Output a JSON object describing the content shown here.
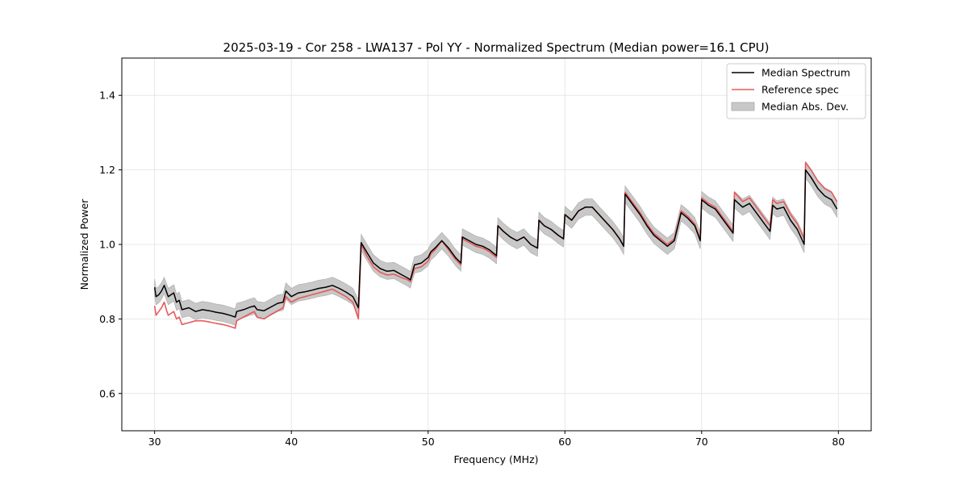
{
  "chart_data": {
    "type": "line",
    "title": "2025-03-19 - Cor 258 - LWA137 - Pol YY - Normalized Spectrum (Median power=16.1 CPU)",
    "xlabel": "Frequency (MHz)",
    "ylabel": "Normalized Power",
    "xlim": [
      27.6,
      82.4
    ],
    "ylim": [
      0.5,
      1.5
    ],
    "xticks": [
      30,
      40,
      50,
      60,
      70,
      80
    ],
    "yticks": [
      0.6,
      0.8,
      1.0,
      1.2,
      1.4
    ],
    "xtick_labels": [
      "30",
      "40",
      "50",
      "60",
      "70",
      "80"
    ],
    "ytick_labels": [
      "0.6",
      "0.8",
      "1.0",
      "1.2",
      "1.4"
    ],
    "grid": true,
    "legend_position": "top-right",
    "legend": [
      {
        "label": "Median Spectrum",
        "kind": "line",
        "color": "#000000"
      },
      {
        "label": "Reference spec",
        "kind": "line",
        "color": "#e8595a"
      },
      {
        "label": "Median Abs. Dev.",
        "kind": "band",
        "color": "#c8c8c8"
      }
    ],
    "series": [
      {
        "name": "Median Spectrum",
        "color": "#000000",
        "x": [
          30.0,
          30.1,
          30.3,
          30.5,
          30.7,
          30.9,
          31.0,
          31.2,
          31.4,
          31.6,
          31.8,
          32.0,
          32.5,
          33.0,
          33.5,
          34.0,
          34.5,
          35.0,
          35.5,
          35.9,
          36.0,
          36.5,
          37.0,
          37.3,
          37.5,
          38.0,
          38.5,
          39.0,
          39.4,
          39.6,
          40.0,
          40.5,
          41.0,
          41.5,
          42.0,
          42.5,
          43.0,
          43.5,
          44.0,
          44.5,
          44.9,
          45.1,
          45.5,
          46.0,
          46.5,
          47.0,
          47.5,
          48.0,
          48.5,
          48.7,
          49.0,
          49.5,
          50.0,
          50.2,
          50.5,
          51.0,
          51.5,
          52.0,
          52.4,
          52.5,
          53.0,
          53.5,
          54.0,
          54.5,
          55.0,
          55.1,
          55.5,
          56.0,
          56.5,
          57.0,
          57.5,
          58.0,
          58.1,
          58.5,
          59.0,
          59.5,
          59.9,
          60.0,
          60.5,
          61.0,
          61.5,
          62.0,
          62.5,
          63.0,
          63.5,
          64.0,
          64.3,
          64.4,
          65.0,
          65.5,
          66.0,
          66.5,
          67.0,
          67.5,
          68.0,
          68.5,
          69.0,
          69.5,
          69.9,
          70.0,
          70.5,
          71.0,
          71.5,
          72.0,
          72.3,
          72.4,
          73.0,
          73.5,
          74.0,
          74.5,
          75.0,
          75.2,
          75.5,
          76.0,
          76.5,
          77.0,
          77.5,
          77.6,
          78.0,
          78.5,
          79.0,
          79.5,
          79.9
        ],
        "values": [
          0.885,
          0.86,
          0.865,
          0.875,
          0.89,
          0.87,
          0.86,
          0.865,
          0.87,
          0.845,
          0.85,
          0.825,
          0.83,
          0.82,
          0.825,
          0.822,
          0.818,
          0.815,
          0.81,
          0.805,
          0.82,
          0.825,
          0.832,
          0.835,
          0.825,
          0.822,
          0.832,
          0.842,
          0.845,
          0.875,
          0.86,
          0.87,
          0.873,
          0.877,
          0.882,
          0.885,
          0.89,
          0.882,
          0.872,
          0.86,
          0.83,
          1.005,
          0.98,
          0.95,
          0.935,
          0.928,
          0.93,
          0.92,
          0.91,
          0.905,
          0.945,
          0.95,
          0.965,
          0.98,
          0.99,
          1.01,
          0.99,
          0.965,
          0.95,
          1.02,
          1.01,
          1.0,
          0.995,
          0.985,
          0.97,
          1.05,
          1.035,
          1.02,
          1.01,
          1.02,
          1.0,
          0.99,
          1.065,
          1.05,
          1.04,
          1.025,
          1.015,
          1.08,
          1.065,
          1.09,
          1.1,
          1.1,
          1.08,
          1.06,
          1.04,
          1.015,
          0.995,
          1.135,
          1.105,
          1.08,
          1.05,
          1.025,
          1.01,
          0.995,
          1.01,
          1.085,
          1.07,
          1.05,
          1.01,
          1.12,
          1.105,
          1.095,
          1.07,
          1.045,
          1.03,
          1.12,
          1.1,
          1.11,
          1.085,
          1.06,
          1.035,
          1.105,
          1.095,
          1.1,
          1.065,
          1.04,
          1.0,
          1.2,
          1.18,
          1.15,
          1.13,
          1.12,
          1.095
        ]
      },
      {
        "name": "Reference spec",
        "color": "#e8595a",
        "x": [
          30.0,
          30.1,
          30.3,
          30.5,
          30.7,
          30.9,
          31.0,
          31.2,
          31.4,
          31.6,
          31.8,
          32.0,
          32.5,
          33.0,
          33.5,
          34.0,
          34.5,
          35.0,
          35.5,
          35.9,
          36.0,
          36.5,
          37.0,
          37.3,
          37.5,
          38.0,
          38.5,
          39.0,
          39.4,
          39.6,
          40.0,
          40.5,
          41.0,
          41.5,
          42.0,
          42.5,
          43.0,
          43.5,
          44.0,
          44.5,
          44.9,
          45.1,
          45.5,
          46.0,
          46.5,
          47.0,
          47.5,
          48.0,
          48.5,
          48.7,
          49.0,
          49.5,
          50.0,
          50.2,
          50.5,
          51.0,
          51.5,
          52.0,
          52.4,
          52.5,
          53.0,
          53.5,
          54.0,
          54.5,
          55.0,
          55.1,
          55.5,
          56.0,
          56.5,
          57.0,
          57.5,
          58.0,
          58.1,
          58.5,
          59.0,
          59.5,
          59.9,
          60.0,
          60.5,
          61.0,
          61.5,
          62.0,
          62.5,
          63.0,
          63.5,
          64.0,
          64.3,
          64.4,
          65.0,
          65.5,
          66.0,
          66.5,
          67.0,
          67.5,
          68.0,
          68.5,
          69.0,
          69.5,
          69.9,
          70.0,
          70.5,
          71.0,
          71.5,
          72.0,
          72.3,
          72.4,
          73.0,
          73.5,
          74.0,
          74.5,
          75.0,
          75.2,
          75.5,
          76.0,
          76.5,
          77.0,
          77.5,
          77.6,
          78.0,
          78.5,
          79.0,
          79.5,
          79.9
        ],
        "values": [
          0.835,
          0.81,
          0.82,
          0.83,
          0.845,
          0.82,
          0.81,
          0.815,
          0.82,
          0.8,
          0.805,
          0.785,
          0.79,
          0.795,
          0.795,
          0.792,
          0.788,
          0.785,
          0.78,
          0.775,
          0.795,
          0.805,
          0.815,
          0.82,
          0.805,
          0.8,
          0.812,
          0.822,
          0.83,
          0.86,
          0.845,
          0.855,
          0.86,
          0.865,
          0.87,
          0.875,
          0.88,
          0.87,
          0.86,
          0.845,
          0.8,
          1.0,
          0.97,
          0.94,
          0.925,
          0.918,
          0.92,
          0.912,
          0.905,
          0.9,
          0.935,
          0.94,
          0.955,
          0.975,
          0.985,
          1.01,
          0.985,
          0.96,
          0.945,
          1.015,
          1.005,
          0.995,
          0.99,
          0.98,
          0.965,
          1.05,
          1.035,
          1.02,
          1.01,
          1.02,
          1.0,
          0.99,
          1.065,
          1.05,
          1.04,
          1.025,
          1.015,
          1.08,
          1.065,
          1.09,
          1.1,
          1.1,
          1.08,
          1.06,
          1.04,
          1.015,
          0.995,
          1.14,
          1.11,
          1.085,
          1.055,
          1.03,
          1.015,
          1.0,
          1.015,
          1.09,
          1.075,
          1.055,
          1.015,
          1.125,
          1.11,
          1.1,
          1.075,
          1.05,
          1.035,
          1.14,
          1.115,
          1.125,
          1.1,
          1.075,
          1.05,
          1.12,
          1.11,
          1.115,
          1.08,
          1.055,
          1.015,
          1.22,
          1.2,
          1.17,
          1.15,
          1.14,
          1.115
        ]
      }
    ],
    "band": {
      "name": "Median Abs. Dev.",
      "color": "#c8c8c8",
      "spread": 0.022
    }
  }
}
